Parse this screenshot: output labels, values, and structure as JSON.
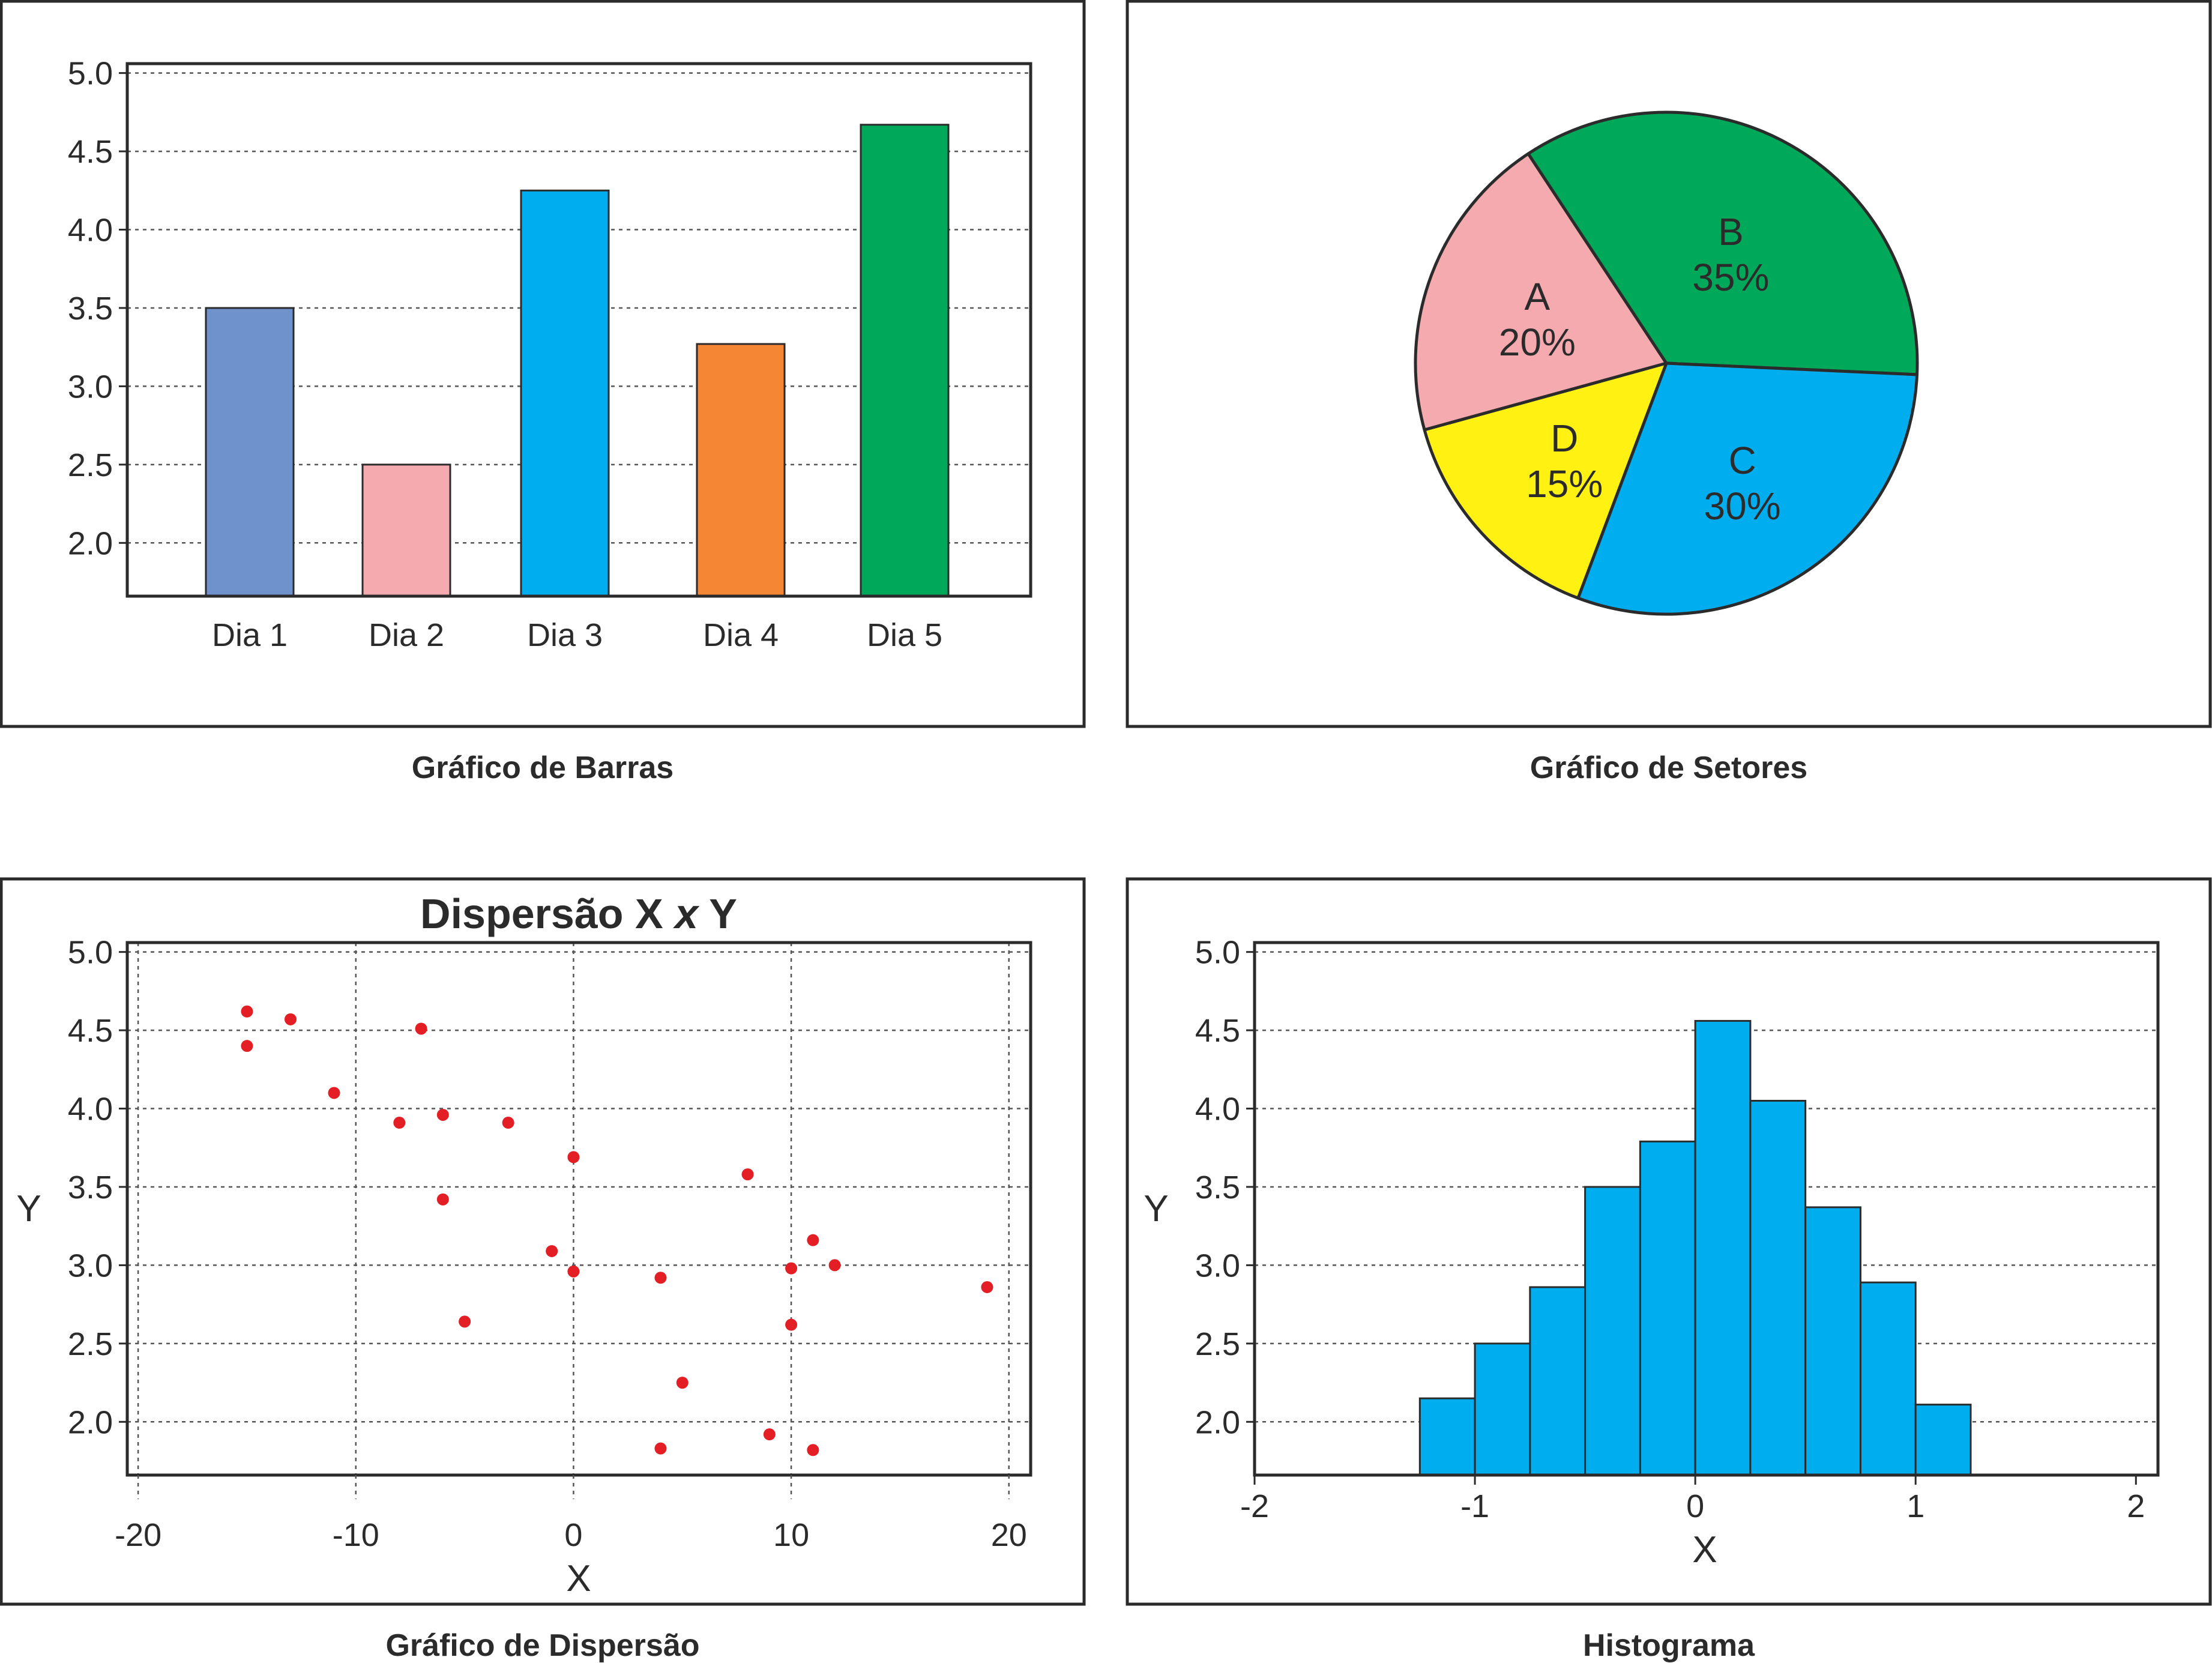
{
  "chart_data": [
    {
      "type": "bar",
      "caption": "Gráfico de Barras",
      "categories": [
        "Dia 1",
        "Dia 2",
        "Dia 3",
        "Dia 4",
        "Dia 5"
      ],
      "values": [
        3.5,
        2.5,
        4.25,
        3.27,
        4.67
      ],
      "colors": [
        "#7092cc",
        "#f5aaaf",
        "#00aeef",
        "#f58634",
        "#00a85a"
      ],
      "ylim": [
        1.66,
        5.06
      ],
      "yticks": [
        "2.0",
        "2.5",
        "3.0",
        "3.5",
        "4.0",
        "4.5",
        "5.0"
      ],
      "grid": true
    },
    {
      "type": "pie",
      "caption": "Gráfico de Setores",
      "slices": [
        {
          "label": "A",
          "value": 20,
          "text": "20%",
          "color": "#f5aaaf"
        },
        {
          "label": "B",
          "value": 35,
          "text": "35%",
          "color": "#00a85a"
        },
        {
          "label": "C",
          "value": 30,
          "text": "30%",
          "color": "#00aeef"
        },
        {
          "label": "D",
          "value": 15,
          "text": "15%",
          "color": "#fff212"
        }
      ]
    },
    {
      "type": "scatter",
      "caption": "Gráfico de Dispersão",
      "title_parts": [
        "Dispersão X ",
        "x",
        " Y"
      ],
      "xlabel": "X",
      "ylabel": "Y",
      "xlim": [
        -20.5,
        21
      ],
      "ylim": [
        1.66,
        5.06
      ],
      "xticks": [
        "-20",
        "-10",
        "0",
        "10",
        "20"
      ],
      "yticks": [
        "2.0",
        "2.5",
        "3.0",
        "3.5",
        "4.0",
        "4.5",
        "5.0"
      ],
      "point_color": "#e31e25",
      "points": [
        [
          -15,
          4.62
        ],
        [
          -15,
          4.4
        ],
        [
          -13,
          4.57
        ],
        [
          -11,
          4.1
        ],
        [
          -8,
          3.91
        ],
        [
          -7,
          4.51
        ],
        [
          -6,
          3.96
        ],
        [
          -6,
          3.42
        ],
        [
          -5,
          2.64
        ],
        [
          -3,
          3.91
        ],
        [
          -1,
          3.09
        ],
        [
          0,
          3.69
        ],
        [
          0,
          2.96
        ],
        [
          4,
          2.92
        ],
        [
          4,
          1.83
        ],
        [
          5,
          2.25
        ],
        [
          8,
          3.58
        ],
        [
          9,
          1.92
        ],
        [
          10,
          2.98
        ],
        [
          10,
          2.62
        ],
        [
          11,
          3.16
        ],
        [
          11,
          1.82
        ],
        [
          12,
          3.0
        ],
        [
          19,
          2.86
        ]
      ],
      "grid": true
    },
    {
      "type": "histogram",
      "caption": "Histograma",
      "xlabel": "X",
      "ylabel": "Y",
      "xlim": [
        -2,
        2.1
      ],
      "ylim": [
        1.66,
        5.06
      ],
      "xticks": [
        "-2",
        "-1",
        "0",
        "1",
        "2"
      ],
      "yticks": [
        "2.0",
        "2.5",
        "3.0",
        "3.5",
        "4.0",
        "4.5",
        "5.0"
      ],
      "bin_width": 0.25,
      "bins": [
        {
          "x0": -1.25,
          "value": 2.15
        },
        {
          "x0": -1.0,
          "value": 2.5
        },
        {
          "x0": -0.75,
          "value": 2.86
        },
        {
          "x0": -0.5,
          "value": 3.5
        },
        {
          "x0": -0.25,
          "value": 3.79
        },
        {
          "x0": 0.0,
          "value": 4.56
        },
        {
          "x0": 0.25,
          "value": 4.05
        },
        {
          "x0": 0.5,
          "value": 3.37
        },
        {
          "x0": 0.75,
          "value": 2.89
        },
        {
          "x0": 1.0,
          "value": 2.11
        }
      ],
      "color": "#00aeef",
      "grid": true
    }
  ]
}
